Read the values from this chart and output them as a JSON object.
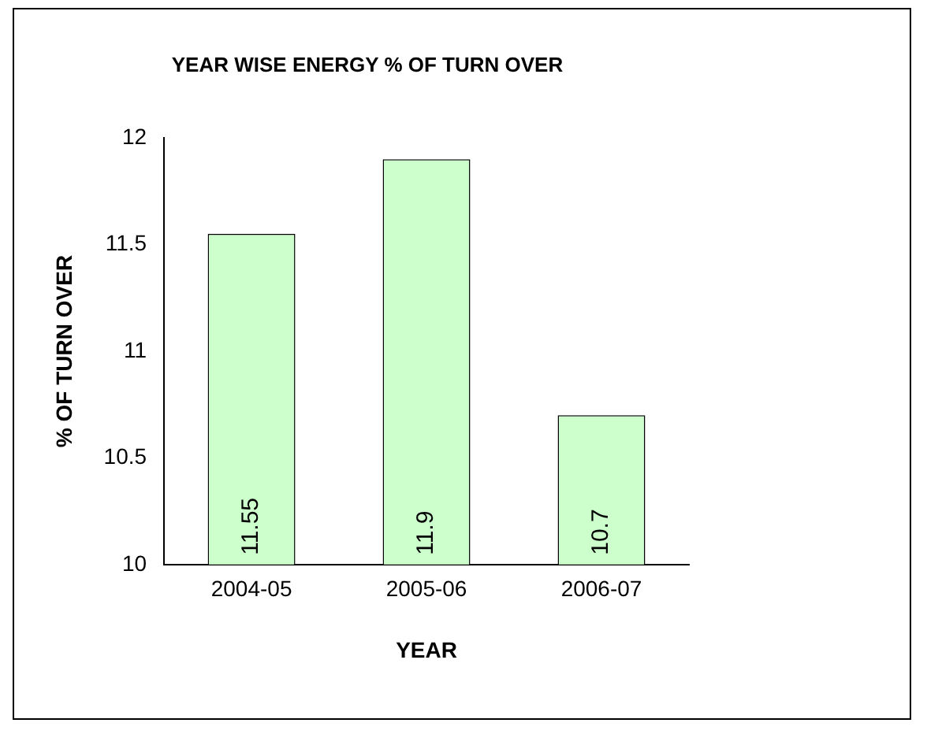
{
  "chart_data": {
    "type": "bar",
    "title": "YEAR WISE ENERGY % OF TURN OVER",
    "xlabel": "YEAR",
    "ylabel": "% OF TURN OVER",
    "categories": [
      "2004-05",
      "2005-06",
      "2006-07"
    ],
    "values": [
      11.55,
      11.9,
      10.7
    ],
    "color": "#ccffcc",
    "ylim": [
      10,
      12
    ],
    "yticks": [
      10,
      10.5,
      11,
      11.5,
      12
    ],
    "data_labels": true
  }
}
